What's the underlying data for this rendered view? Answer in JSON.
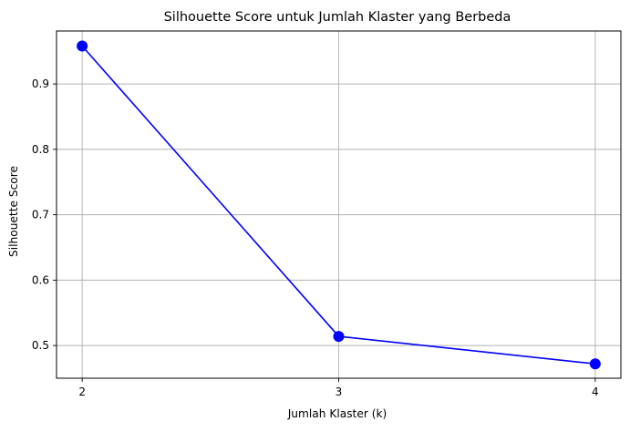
{
  "chart_data": {
    "type": "line",
    "title": "Silhouette Score untuk Jumlah Klaster yang Berbeda",
    "xlabel": "Jumlah Klaster (k)",
    "ylabel": "Silhouette Score",
    "x": [
      2,
      3,
      4
    ],
    "xticks": [
      "2",
      "3",
      "4"
    ],
    "yticks": [
      "0.5",
      "0.6",
      "0.7",
      "0.8",
      "0.9"
    ],
    "series": [
      {
        "values": [
          0.958,
          0.514,
          0.472
        ]
      }
    ],
    "xlim": [
      1.9,
      4.1
    ],
    "ylim": [
      0.45,
      0.981
    ],
    "grid": true,
    "line_color": "#0000ff",
    "marker": "circle",
    "grid_color": "#b0b0b0",
    "axis_color": "#000000"
  }
}
